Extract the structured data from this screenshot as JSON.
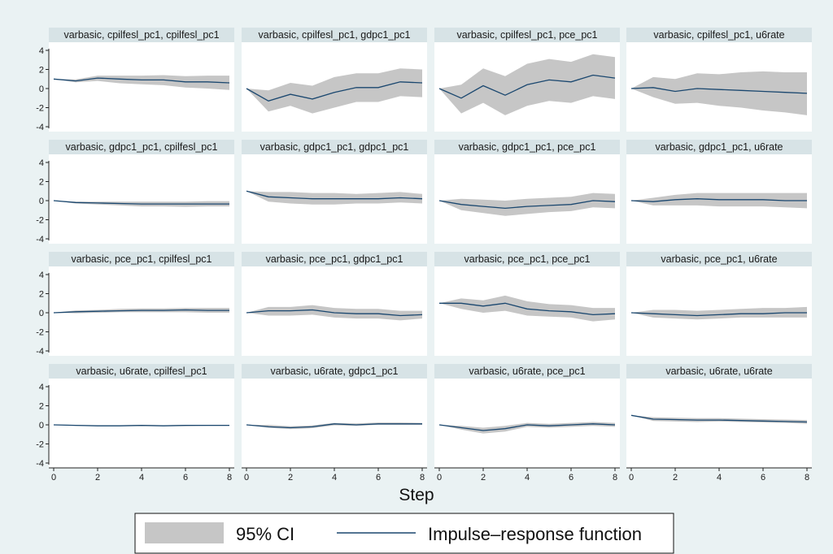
{
  "chart_data": {
    "type": "line",
    "xlabel": "Step",
    "x": [
      0,
      1,
      2,
      3,
      4,
      5,
      6,
      7,
      8
    ],
    "x_ticks": [
      "0",
      "2",
      "4",
      "6",
      "8"
    ],
    "ylim": [
      -4,
      4
    ],
    "y_ticks": [
      "-4",
      "-2",
      "0",
      "2",
      "4"
    ],
    "grid": false,
    "legend": {
      "placement": "bottom",
      "ci_label": "95% CI",
      "line_label": "Impulse–response function"
    },
    "colors": {
      "ci_fill": "#c6c6c6",
      "line": "#1a476f",
      "panel_header": "#d7e3e6",
      "background": "#eaf2f3",
      "plot_background": "#ffffff"
    },
    "panels": [
      {
        "title": "varbasic, cpilfesl_pc1, cpilfesl_pc1",
        "irf": [
          1.0,
          0.8,
          1.1,
          1.0,
          0.9,
          0.9,
          0.7,
          0.7,
          0.6
        ],
        "lower": [
          1.0,
          0.65,
          0.8,
          0.55,
          0.45,
          0.35,
          0.1,
          0.0,
          -0.15
        ],
        "upper": [
          1.0,
          0.95,
          1.35,
          1.35,
          1.35,
          1.4,
          1.3,
          1.35,
          1.35
        ]
      },
      {
        "title": "varbasic, cpilfesl_pc1, gdpc1_pc1",
        "irf": [
          0.0,
          -1.3,
          -0.6,
          -1.1,
          -0.4,
          0.1,
          0.1,
          0.7,
          0.6
        ],
        "lower": [
          0.0,
          -2.4,
          -1.8,
          -2.6,
          -2.0,
          -1.4,
          -1.4,
          -0.8,
          -0.9
        ],
        "upper": [
          0.0,
          -0.2,
          0.6,
          0.3,
          1.2,
          1.6,
          1.6,
          2.1,
          2.0
        ]
      },
      {
        "title": "varbasic, cpilfesl_pc1, pce_pc1",
        "irf": [
          0.0,
          -1.0,
          0.3,
          -0.7,
          0.4,
          0.9,
          0.7,
          1.4,
          1.1
        ],
        "lower": [
          0.0,
          -2.6,
          -1.5,
          -2.8,
          -1.8,
          -1.3,
          -1.5,
          -0.8,
          -1.1
        ],
        "upper": [
          0.0,
          0.4,
          2.1,
          1.3,
          2.6,
          3.1,
          2.8,
          3.6,
          3.3
        ]
      },
      {
        "title": "varbasic, cpilfesl_pc1, u6rate",
        "irf": [
          0.0,
          0.1,
          -0.3,
          0.0,
          -0.1,
          -0.2,
          -0.3,
          -0.4,
          -0.5
        ],
        "lower": [
          0.0,
          -0.9,
          -1.6,
          -1.5,
          -1.8,
          -2.0,
          -2.3,
          -2.5,
          -2.8
        ],
        "upper": [
          0.0,
          1.2,
          1.0,
          1.6,
          1.5,
          1.7,
          1.8,
          1.7,
          1.7
        ]
      },
      {
        "title": "varbasic, gdpc1_pc1, cpilfesl_pc1",
        "irf": [
          0.0,
          -0.2,
          -0.25,
          -0.3,
          -0.35,
          -0.35,
          -0.35,
          -0.35,
          -0.35
        ],
        "lower": [
          0.0,
          -0.3,
          -0.4,
          -0.5,
          -0.6,
          -0.6,
          -0.65,
          -0.6,
          -0.6
        ],
        "upper": [
          0.0,
          -0.1,
          -0.1,
          -0.1,
          -0.1,
          -0.1,
          -0.1,
          -0.05,
          -0.05
        ]
      },
      {
        "title": "varbasic, gdpc1_pc1, gdpc1_pc1",
        "irf": [
          1.0,
          0.4,
          0.3,
          0.2,
          0.2,
          0.2,
          0.2,
          0.3,
          0.2
        ],
        "lower": [
          1.0,
          -0.1,
          -0.3,
          -0.4,
          -0.4,
          -0.3,
          -0.3,
          -0.2,
          -0.3
        ],
        "upper": [
          1.0,
          0.9,
          0.9,
          0.8,
          0.8,
          0.7,
          0.8,
          0.9,
          0.7
        ]
      },
      {
        "title": "varbasic, gdpc1_pc1, pce_pc1",
        "irf": [
          0.0,
          -0.4,
          -0.6,
          -0.8,
          -0.6,
          -0.5,
          -0.4,
          0.0,
          -0.1
        ],
        "lower": [
          0.0,
          -1.0,
          -1.3,
          -1.6,
          -1.4,
          -1.2,
          -1.1,
          -0.7,
          -0.8
        ],
        "upper": [
          0.0,
          0.2,
          0.1,
          0.0,
          0.2,
          0.3,
          0.4,
          0.8,
          0.7
        ]
      },
      {
        "title": "varbasic, gdpc1_pc1, u6rate",
        "irf": [
          0.0,
          -0.1,
          0.1,
          0.2,
          0.1,
          0.1,
          0.1,
          0.0,
          0.0
        ],
        "lower": [
          0.0,
          -0.5,
          -0.5,
          -0.5,
          -0.6,
          -0.6,
          -0.6,
          -0.7,
          -0.8
        ],
        "upper": [
          0.0,
          0.3,
          0.6,
          0.8,
          0.8,
          0.8,
          0.8,
          0.8,
          0.8
        ]
      },
      {
        "title": "varbasic, pce_pc1, cpilfesl_pc1",
        "irf": [
          0.0,
          0.1,
          0.15,
          0.2,
          0.25,
          0.25,
          0.3,
          0.25,
          0.25
        ],
        "lower": [
          0.0,
          -0.05,
          0.0,
          0.05,
          0.05,
          0.05,
          0.05,
          0.0,
          0.0
        ],
        "upper": [
          0.0,
          0.25,
          0.3,
          0.4,
          0.45,
          0.45,
          0.5,
          0.5,
          0.5
        ]
      },
      {
        "title": "varbasic, pce_pc1, gdpc1_pc1",
        "irf": [
          0.0,
          0.2,
          0.2,
          0.3,
          0.0,
          -0.1,
          -0.1,
          -0.3,
          -0.2
        ],
        "lower": [
          0.0,
          -0.3,
          -0.3,
          -0.2,
          -0.5,
          -0.6,
          -0.6,
          -0.8,
          -0.6
        ],
        "upper": [
          0.0,
          0.6,
          0.6,
          0.8,
          0.5,
          0.4,
          0.4,
          0.2,
          0.2
        ]
      },
      {
        "title": "varbasic, pce_pc1, pce_pc1",
        "irf": [
          1.0,
          1.0,
          0.7,
          1.0,
          0.4,
          0.2,
          0.1,
          -0.2,
          -0.1
        ],
        "lower": [
          1.0,
          0.4,
          0.0,
          0.2,
          -0.3,
          -0.4,
          -0.5,
          -0.9,
          -0.7
        ],
        "upper": [
          1.0,
          1.5,
          1.3,
          1.8,
          1.2,
          0.9,
          0.8,
          0.5,
          0.5
        ]
      },
      {
        "title": "varbasic, pce_pc1, u6rate",
        "irf": [
          0.0,
          -0.1,
          -0.2,
          -0.3,
          -0.2,
          -0.1,
          -0.1,
          0.0,
          0.0
        ],
        "lower": [
          0.0,
          -0.5,
          -0.6,
          -0.7,
          -0.6,
          -0.5,
          -0.5,
          -0.5,
          -0.5
        ],
        "upper": [
          0.0,
          0.3,
          0.3,
          0.2,
          0.3,
          0.4,
          0.5,
          0.5,
          0.6
        ]
      },
      {
        "title": "varbasic, u6rate, cpilfesl_pc1",
        "irf": [
          0.0,
          -0.05,
          -0.1,
          -0.1,
          -0.05,
          -0.1,
          -0.05,
          -0.05,
          -0.05
        ],
        "lower": [
          0.0,
          -0.1,
          -0.15,
          -0.15,
          -0.15,
          -0.15,
          -0.15,
          -0.1,
          -0.1
        ],
        "upper": [
          0.0,
          0.0,
          -0.05,
          -0.05,
          0.0,
          -0.05,
          0.0,
          0.0,
          0.0
        ]
      },
      {
        "title": "varbasic, u6rate, gdpc1_pc1",
        "irf": [
          0.0,
          -0.2,
          -0.3,
          -0.2,
          0.1,
          0.0,
          0.1,
          0.1,
          0.1
        ],
        "lower": [
          0.0,
          -0.3,
          -0.45,
          -0.35,
          -0.05,
          -0.1,
          0.0,
          0.0,
          0.0
        ],
        "upper": [
          0.0,
          0.0,
          -0.15,
          -0.05,
          0.2,
          0.15,
          0.25,
          0.25,
          0.2
        ]
      },
      {
        "title": "varbasic, u6rate, pce_pc1",
        "irf": [
          0.0,
          -0.3,
          -0.6,
          -0.4,
          0.0,
          -0.1,
          0.0,
          0.1,
          0.0
        ],
        "lower": [
          0.0,
          -0.5,
          -0.9,
          -0.7,
          -0.2,
          -0.3,
          -0.2,
          -0.1,
          -0.2
        ],
        "upper": [
          0.0,
          -0.1,
          -0.3,
          -0.1,
          0.2,
          0.1,
          0.2,
          0.3,
          0.2
        ]
      },
      {
        "title": "varbasic, u6rate, u6rate",
        "irf": [
          1.0,
          0.6,
          0.55,
          0.5,
          0.5,
          0.45,
          0.4,
          0.35,
          0.3
        ],
        "lower": [
          1.0,
          0.4,
          0.35,
          0.3,
          0.35,
          0.3,
          0.25,
          0.2,
          0.1
        ],
        "upper": [
          1.0,
          0.8,
          0.75,
          0.7,
          0.7,
          0.65,
          0.6,
          0.55,
          0.5
        ]
      }
    ]
  }
}
